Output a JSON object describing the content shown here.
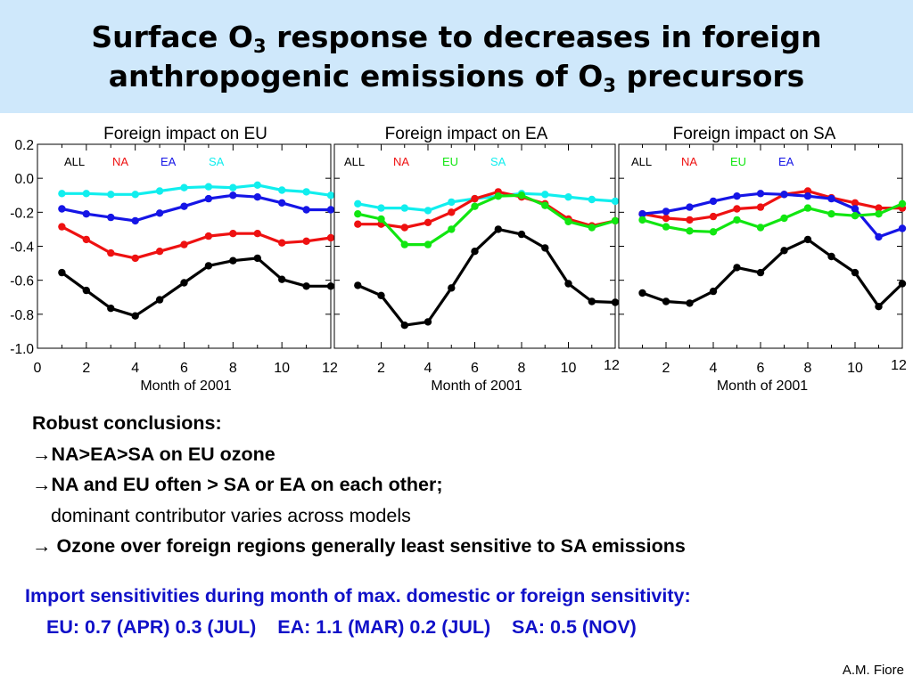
{
  "slide": {
    "title_line1_a": "Surface O",
    "title_line1_sub": "3",
    "title_line1_b": " response to decreases in foreign",
    "title_line2_a": "anthropogenic emissions of O",
    "title_line2_sub": "3",
    "title_line2_b": " precursors",
    "conclusions_heading": "Robust conclusions:",
    "conclusion_1": "NA>EA>SA on EU ozone",
    "conclusion_2": "NA and EU often > SA or EA on each other;",
    "conclusion_2_sub": "dominant contributor varies across models",
    "conclusion_3": " Ozone over foreign regions generally least sensitive to SA emissions",
    "arrow_glyph": "→",
    "import_heading": "Import sensitivities during month of max. domestic or foreign sensitivity:",
    "import_values": "EU: 0.7 (APR) 0.3 (JUL)    EA: 1.1 (MAR) 0.2 (JUL)    SA: 0.5 (NOV)",
    "credit": "A.M. Fiore"
  },
  "colors": {
    "ALL": "#000000",
    "NA": "#ee1111",
    "EA": "#1515e6",
    "EU": "#11e611",
    "SA": "#11eeee",
    "title_band": "#cfe8fb",
    "import_text": "#1010c8"
  },
  "chart_data": [
    {
      "type": "line",
      "title": "Foreign impact on EU",
      "xlabel": "Month of 2001",
      "ylabel": "",
      "xlim": [
        0,
        12
      ],
      "ylim": [
        -1.0,
        0.2
      ],
      "yticks": [
        "0.2",
        "0.0",
        "-0.2",
        "-0.4",
        "-0.6",
        "-0.8",
        "-1.0"
      ],
      "xticks": [
        "0",
        "2",
        "4",
        "6",
        "8",
        "10",
        "12"
      ],
      "legend": [
        "ALL",
        "NA",
        "EA",
        "SA"
      ],
      "legend_placement": "top-left",
      "x": [
        1,
        2,
        3,
        4,
        5,
        6,
        7,
        8,
        9,
        10,
        11,
        12
      ],
      "series": [
        {
          "name": "SA",
          "values": [
            -0.09,
            -0.09,
            -0.095,
            -0.095,
            -0.075,
            -0.055,
            -0.05,
            -0.055,
            -0.04,
            -0.07,
            -0.08,
            -0.1
          ]
        },
        {
          "name": "EA",
          "values": [
            -0.18,
            -0.21,
            -0.23,
            -0.25,
            -0.205,
            -0.165,
            -0.12,
            -0.1,
            -0.11,
            -0.145,
            -0.185,
            -0.185
          ]
        },
        {
          "name": "NA",
          "values": [
            -0.285,
            -0.36,
            -0.44,
            -0.47,
            -0.43,
            -0.39,
            -0.34,
            -0.325,
            -0.325,
            -0.38,
            -0.37,
            -0.35
          ]
        },
        {
          "name": "ALL",
          "values": [
            -0.555,
            -0.66,
            -0.765,
            -0.81,
            -0.715,
            -0.615,
            -0.515,
            -0.485,
            -0.47,
            -0.595,
            -0.635,
            -0.635
          ]
        }
      ]
    },
    {
      "type": "line",
      "title": "Foreign impact on EA",
      "xlabel": "Month of 2001",
      "ylabel": "",
      "xlim": [
        0,
        12
      ],
      "ylim": [
        -1.0,
        0.2
      ],
      "xticks": [
        "2",
        "4",
        "6",
        "8",
        "10",
        "12"
      ],
      "legend": [
        "ALL",
        "NA",
        "EU",
        "SA"
      ],
      "legend_placement": "top-left",
      "x": [
        1,
        2,
        3,
        4,
        5,
        6,
        7,
        8,
        9,
        10,
        11,
        12
      ],
      "series": [
        {
          "name": "SA",
          "values": [
            -0.15,
            -0.175,
            -0.175,
            -0.19,
            -0.14,
            -0.12,
            -0.105,
            -0.09,
            -0.095,
            -0.11,
            -0.125,
            -0.135
          ]
        },
        {
          "name": "NA",
          "values": [
            -0.27,
            -0.27,
            -0.29,
            -0.26,
            -0.2,
            -0.12,
            -0.08,
            -0.11,
            -0.15,
            -0.24,
            -0.28,
            -0.25
          ]
        },
        {
          "name": "EU",
          "values": [
            -0.21,
            -0.24,
            -0.39,
            -0.39,
            -0.3,
            -0.165,
            -0.105,
            -0.1,
            -0.16,
            -0.255,
            -0.29,
            -0.25
          ]
        },
        {
          "name": "ALL",
          "values": [
            -0.63,
            -0.69,
            -0.865,
            -0.845,
            -0.645,
            -0.43,
            -0.3,
            -0.33,
            -0.41,
            -0.62,
            -0.725,
            -0.73
          ]
        }
      ]
    },
    {
      "type": "line",
      "title": "Foreign impact on SA",
      "xlabel": "Month of 2001",
      "ylabel": "",
      "xlim": [
        0,
        12
      ],
      "ylim": [
        -1.0,
        0.2
      ],
      "xticks": [
        "2",
        "4",
        "6",
        "8",
        "10",
        "12"
      ],
      "legend": [
        "ALL",
        "NA",
        "EU",
        "EA"
      ],
      "legend_placement": "top-left",
      "x": [
        1,
        2,
        3,
        4,
        5,
        6,
        7,
        8,
        9,
        10,
        11,
        12
      ],
      "series": [
        {
          "name": "NA",
          "values": [
            -0.21,
            -0.235,
            -0.245,
            -0.225,
            -0.18,
            -0.17,
            -0.095,
            -0.075,
            -0.115,
            -0.145,
            -0.175,
            -0.175
          ]
        },
        {
          "name": "EA",
          "values": [
            -0.21,
            -0.195,
            -0.17,
            -0.135,
            -0.105,
            -0.09,
            -0.095,
            -0.105,
            -0.12,
            -0.18,
            -0.345,
            -0.295
          ]
        },
        {
          "name": "EU",
          "values": [
            -0.245,
            -0.285,
            -0.31,
            -0.315,
            -0.245,
            -0.29,
            -0.235,
            -0.175,
            -0.21,
            -0.22,
            -0.21,
            -0.15
          ]
        },
        {
          "name": "ALL",
          "values": [
            -0.675,
            -0.725,
            -0.735,
            -0.665,
            -0.525,
            -0.555,
            -0.425,
            -0.36,
            -0.46,
            -0.555,
            -0.755,
            -0.62
          ]
        }
      ]
    }
  ]
}
